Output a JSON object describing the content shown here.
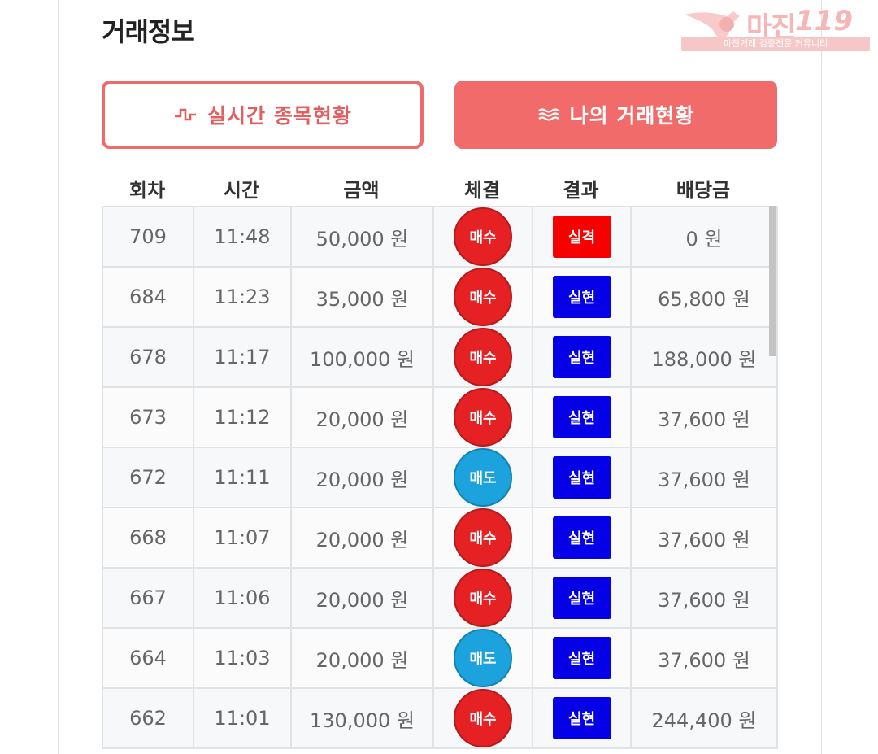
{
  "page": {
    "title": "거래정보"
  },
  "watermark": {
    "brand": "마진",
    "number": "119",
    "subtitle": "마진거래 검증전문 커뮤니티"
  },
  "buttons": {
    "realtime_label": "실시간 종목현황",
    "realtime_icon": "pulse-icon",
    "mytrade_label": "나의 거래현황",
    "mytrade_icon": "waves-icon"
  },
  "colors": {
    "accent": "#f26b6b",
    "buy": "#e52124",
    "sell": "#1ca3dd",
    "fail": "#f70000",
    "success": "#0500e6"
  },
  "table": {
    "headers": [
      "회차",
      "시간",
      "금액",
      "체결",
      "결과",
      "배당금"
    ],
    "rows": [
      {
        "round": "709",
        "time": "11:48",
        "amount": "50,000 원",
        "side": "매수",
        "side_type": "buy",
        "result": "실격",
        "result_type": "fail",
        "payout": "0 원"
      },
      {
        "round": "684",
        "time": "11:23",
        "amount": "35,000 원",
        "side": "매수",
        "side_type": "buy",
        "result": "실현",
        "result_type": "ok",
        "payout": "65,800 원"
      },
      {
        "round": "678",
        "time": "11:17",
        "amount": "100,000 원",
        "side": "매수",
        "side_type": "buy",
        "result": "실현",
        "result_type": "ok",
        "payout": "188,000 원"
      },
      {
        "round": "673",
        "time": "11:12",
        "amount": "20,000 원",
        "side": "매수",
        "side_type": "buy",
        "result": "실현",
        "result_type": "ok",
        "payout": "37,600 원"
      },
      {
        "round": "672",
        "time": "11:11",
        "amount": "20,000 원",
        "side": "매도",
        "side_type": "sell",
        "result": "실현",
        "result_type": "ok",
        "payout": "37,600 원"
      },
      {
        "round": "668",
        "time": "11:07",
        "amount": "20,000 원",
        "side": "매수",
        "side_type": "buy",
        "result": "실현",
        "result_type": "ok",
        "payout": "37,600 원"
      },
      {
        "round": "667",
        "time": "11:06",
        "amount": "20,000 원",
        "side": "매수",
        "side_type": "buy",
        "result": "실현",
        "result_type": "ok",
        "payout": "37,600 원"
      },
      {
        "round": "664",
        "time": "11:03",
        "amount": "20,000 원",
        "side": "매도",
        "side_type": "sell",
        "result": "실현",
        "result_type": "ok",
        "payout": "37,600 원"
      },
      {
        "round": "662",
        "time": "11:01",
        "amount": "130,000 원",
        "side": "매수",
        "side_type": "buy",
        "result": "실현",
        "result_type": "ok",
        "payout": "244,400 원"
      }
    ]
  }
}
